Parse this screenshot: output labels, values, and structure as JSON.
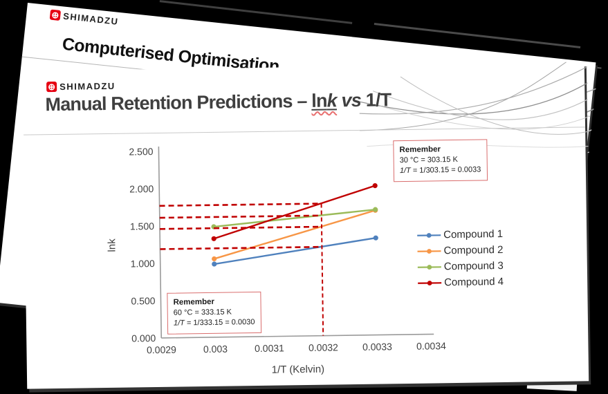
{
  "back_slide": {
    "brand": "SHIMADZU",
    "title": "Computerised Optimisation"
  },
  "front_slide": {
    "brand": "SHIMADZU",
    "title_prefix": "Manual Retention Predictions – ",
    "title_ln": "ln",
    "title_k": "k",
    "title_vs": " vs ",
    "title_suffix": " 1/T"
  },
  "icons": {
    "shimadzu_logo_icon": "⊕"
  },
  "chart_data": {
    "type": "line",
    "x": [
      0.003,
      0.0033
    ],
    "series": [
      {
        "name": "Compound 1",
        "color": "#4F81BD",
        "values": [
          0.98,
          1.3
        ]
      },
      {
        "name": "Compound 2",
        "color": "#F79646",
        "values": [
          1.05,
          1.67
        ]
      },
      {
        "name": "Compound 3",
        "color": "#9BBB59",
        "values": [
          1.48,
          1.68
        ]
      },
      {
        "name": "Compound 4",
        "color": "#C00000",
        "values": [
          1.32,
          2.0
        ]
      }
    ],
    "xlabel": "1/T (Kelvin)",
    "ylabel": "lnk",
    "xlim": [
      0.0029,
      0.0034
    ],
    "ylim": [
      0,
      2.5
    ],
    "x_ticks": [
      0.0029,
      0.003,
      0.0031,
      0.0032,
      0.0033,
      0.0034
    ],
    "x_tick_labels": [
      "0.0029",
      "0.003",
      "0.0031",
      "0.0032",
      "0.0033",
      "0.0034"
    ],
    "y_ticks": [
      0,
      0.5,
      1.0,
      1.5,
      2.0,
      2.5
    ],
    "y_tick_labels": [
      "0.000",
      "0.500",
      "1.000",
      "1.500",
      "2.000",
      "2.500"
    ],
    "grid": false,
    "legend_position": "right",
    "marker": "circle",
    "annotations": {
      "dashed_color": "#C00000",
      "vertical_line_x": 0.0032,
      "horizontal_lines_y": [
        1.77,
        1.61,
        1.46,
        1.19
      ]
    }
  },
  "remember_boxes": [
    {
      "title": "Remember",
      "line1": "30 °C = 303.15 K",
      "eq_prefix": "1/",
      "eq_t": "T",
      "eq_rest": " = 1/303.15 = 0.0033"
    },
    {
      "title": "Remember",
      "line1": "60 °C = 333.15 K",
      "eq_prefix": "1/",
      "eq_t": "T",
      "eq_rest": " = 1/333.15 = 0.0030"
    }
  ],
  "colors": {
    "accent_red": "#C00000",
    "box_border": "#D96C6C",
    "axis_gray": "#9A9A9A",
    "title_gray": "#3F3F3F",
    "logo_red": "#E60012"
  }
}
